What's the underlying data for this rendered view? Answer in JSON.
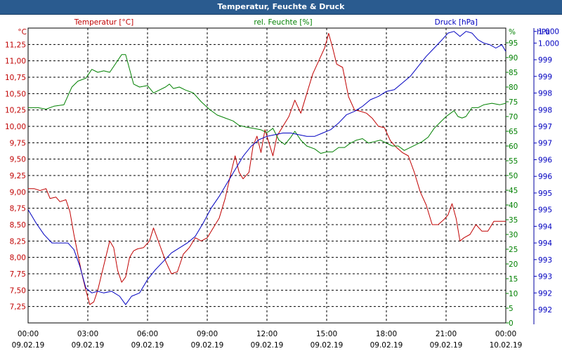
{
  "window": {
    "title": "Temperatur, Feuchte & Druck"
  },
  "chart_data": {
    "type": "line",
    "title": "Temperatur, Feuchte & Druck",
    "colors": {
      "temperature": "#c00000",
      "humidity": "#008000",
      "pressure": "#0000c0",
      "grid": "#000000",
      "title_bar": "#2a5b8f"
    },
    "x": {
      "label": "",
      "range_hours": [
        0,
        24
      ],
      "ticks": [
        {
          "hour": 0,
          "time": "00:00",
          "date": "09.02.19"
        },
        {
          "hour": 3,
          "time": "03:00",
          "date": "09.02.19"
        },
        {
          "hour": 6,
          "time": "06:00",
          "date": "09.02.19"
        },
        {
          "hour": 9,
          "time": "09:00",
          "date": "09.02.19"
        },
        {
          "hour": 12,
          "time": "12:00",
          "date": "09.02.19"
        },
        {
          "hour": 15,
          "time": "15:00",
          "date": "09.02.19"
        },
        {
          "hour": 18,
          "time": "18:00",
          "date": "09.02.19"
        },
        {
          "hour": 21,
          "time": "21:00",
          "date": "09.02.19"
        },
        {
          "hour": 24,
          "time": "00:00",
          "date": "10.02.19"
        }
      ]
    },
    "axes": {
      "temperature": {
        "unit_label": "°C",
        "series_label": "Temperatur [°C]",
        "ylim": [
          7.0,
          11.5
        ],
        "ticks": [
          7.25,
          7.5,
          7.75,
          8.0,
          8.25,
          8.5,
          8.75,
          9.0,
          9.25,
          9.5,
          9.75,
          10.0,
          10.25,
          10.5,
          10.75,
          11.0,
          11.25
        ],
        "tick_labels": [
          "7,25",
          "7,50",
          "7,75",
          "8,00",
          "8,25",
          "8,50",
          "8,75",
          "9,00",
          "9,25",
          "9,50",
          "9,75",
          "10,00",
          "10,25",
          "10,50",
          "10,75",
          "11,00",
          "11,25"
        ]
      },
      "humidity": {
        "unit_label": "%",
        "series_label": "rel. Feuchte [%]",
        "ylim": [
          0,
          100
        ],
        "ticks": [
          0,
          5,
          10,
          15,
          20,
          25,
          30,
          35,
          40,
          45,
          50,
          55,
          60,
          65,
          70,
          75,
          80,
          85,
          90,
          95
        ],
        "tick_labels": [
          "0",
          "5",
          "10",
          "15",
          "20",
          "25",
          "30",
          "35",
          "40",
          "45",
          "50",
          "55",
          "60",
          "65",
          "70",
          "75",
          "80",
          "85",
          "90",
          "95"
        ]
      },
      "pressure": {
        "unit_label": "hPa",
        "series_label": "Druck [hPa]",
        "ylim": [
          991.6,
          1000.45
        ],
        "ticks": [
          992,
          992.5,
          993,
          993.5,
          994,
          994.5,
          995,
          995.5,
          996,
          996.5,
          997,
          997.5,
          998,
          998.5,
          999,
          999.5,
          1000,
          1000.35
        ],
        "tick_labels": [
          "992",
          "992",
          "993",
          "993",
          "994",
          "994",
          "995",
          "995",
          "996",
          "996",
          "997",
          "997",
          "998",
          "998",
          "999",
          "999",
          "1.000",
          "1.000"
        ]
      }
    },
    "series": [
      {
        "name": "Temperatur [°C]",
        "axis": "temperature",
        "points": [
          [
            0,
            9.05
          ],
          [
            0.3,
            9.05
          ],
          [
            0.6,
            9.02
          ],
          [
            0.9,
            9.05
          ],
          [
            1.1,
            8.9
          ],
          [
            1.4,
            8.92
          ],
          [
            1.6,
            8.85
          ],
          [
            1.9,
            8.88
          ],
          [
            2.1,
            8.7
          ],
          [
            2.3,
            8.35
          ],
          [
            2.5,
            8.05
          ],
          [
            2.7,
            7.75
          ],
          [
            2.9,
            7.5
          ],
          [
            3.1,
            7.28
          ],
          [
            3.3,
            7.32
          ],
          [
            3.5,
            7.5
          ],
          [
            3.7,
            7.75
          ],
          [
            3.9,
            8.0
          ],
          [
            4.1,
            8.25
          ],
          [
            4.3,
            8.15
          ],
          [
            4.5,
            7.8
          ],
          [
            4.7,
            7.62
          ],
          [
            4.9,
            7.7
          ],
          [
            5.1,
            8.0
          ],
          [
            5.3,
            8.1
          ],
          [
            5.5,
            8.13
          ],
          [
            5.8,
            8.15
          ],
          [
            6.1,
            8.25
          ],
          [
            6.3,
            8.45
          ],
          [
            6.6,
            8.2
          ],
          [
            6.9,
            7.95
          ],
          [
            7.2,
            7.75
          ],
          [
            7.5,
            7.78
          ],
          [
            7.8,
            8.05
          ],
          [
            8.1,
            8.15
          ],
          [
            8.4,
            8.3
          ],
          [
            8.7,
            8.25
          ],
          [
            9.0,
            8.3
          ],
          [
            9.3,
            8.45
          ],
          [
            9.6,
            8.6
          ],
          [
            9.9,
            8.9
          ],
          [
            10.2,
            9.3
          ],
          [
            10.4,
            9.55
          ],
          [
            10.6,
            9.3
          ],
          [
            10.8,
            9.2
          ],
          [
            11.1,
            9.3
          ],
          [
            11.3,
            9.7
          ],
          [
            11.5,
            9.85
          ],
          [
            11.7,
            9.6
          ],
          [
            11.9,
            9.95
          ],
          [
            12.1,
            9.75
          ],
          [
            12.3,
            9.55
          ],
          [
            12.5,
            9.85
          ],
          [
            12.8,
            10.0
          ],
          [
            13.1,
            10.15
          ],
          [
            13.4,
            10.4
          ],
          [
            13.7,
            10.2
          ],
          [
            14.0,
            10.5
          ],
          [
            14.3,
            10.8
          ],
          [
            14.6,
            11.0
          ],
          [
            14.9,
            11.2
          ],
          [
            15.1,
            11.42
          ],
          [
            15.3,
            11.2
          ],
          [
            15.5,
            10.95
          ],
          [
            15.8,
            10.9
          ],
          [
            16.1,
            10.45
          ],
          [
            16.4,
            10.25
          ],
          [
            16.7,
            10.23
          ],
          [
            17.0,
            10.2
          ],
          [
            17.3,
            10.12
          ],
          [
            17.6,
            10.0
          ],
          [
            17.9,
            9.98
          ],
          [
            18.2,
            9.78
          ],
          [
            18.5,
            9.68
          ],
          [
            18.8,
            9.6
          ],
          [
            19.1,
            9.55
          ],
          [
            19.4,
            9.3
          ],
          [
            19.7,
            9.0
          ],
          [
            20.0,
            8.8
          ],
          [
            20.3,
            8.5
          ],
          [
            20.6,
            8.5
          ],
          [
            20.9,
            8.58
          ],
          [
            21.1,
            8.65
          ],
          [
            21.3,
            8.82
          ],
          [
            21.5,
            8.6
          ],
          [
            21.7,
            8.25
          ],
          [
            21.9,
            8.3
          ],
          [
            22.2,
            8.35
          ],
          [
            22.5,
            8.5
          ],
          [
            22.8,
            8.4
          ],
          [
            23.1,
            8.4
          ],
          [
            23.4,
            8.55
          ],
          [
            23.7,
            8.55
          ],
          [
            24.0,
            8.55
          ]
        ]
      },
      {
        "name": "rel. Feuchte [%]",
        "axis": "humidity",
        "points": [
          [
            0,
            73
          ],
          [
            0.5,
            73
          ],
          [
            0.9,
            72.5
          ],
          [
            1.3,
            73.5
          ],
          [
            1.8,
            74
          ],
          [
            2.2,
            80
          ],
          [
            2.5,
            82
          ],
          [
            2.9,
            83
          ],
          [
            3.2,
            86
          ],
          [
            3.5,
            85
          ],
          [
            3.8,
            85.5
          ],
          [
            4.1,
            85
          ],
          [
            4.4,
            88
          ],
          [
            4.7,
            91
          ],
          [
            4.9,
            91
          ],
          [
            5.1,
            86
          ],
          [
            5.3,
            81
          ],
          [
            5.6,
            80
          ],
          [
            6.0,
            80.5
          ],
          [
            6.3,
            78
          ],
          [
            6.6,
            79
          ],
          [
            6.9,
            80
          ],
          [
            7.1,
            81
          ],
          [
            7.3,
            79.5
          ],
          [
            7.6,
            80
          ],
          [
            7.9,
            79
          ],
          [
            8.3,
            78
          ],
          [
            8.7,
            75
          ],
          [
            9.1,
            72.5
          ],
          [
            9.5,
            70.5
          ],
          [
            9.9,
            69.5
          ],
          [
            10.3,
            68.5
          ],
          [
            10.6,
            67
          ],
          [
            10.9,
            66.5
          ],
          [
            11.3,
            66
          ],
          [
            11.7,
            65.5
          ],
          [
            12.0,
            64.5
          ],
          [
            12.3,
            66
          ],
          [
            12.6,
            62
          ],
          [
            12.9,
            60.5
          ],
          [
            13.2,
            63
          ],
          [
            13.4,
            65
          ],
          [
            13.7,
            62
          ],
          [
            14.0,
            60
          ],
          [
            14.4,
            59
          ],
          [
            14.7,
            57.5
          ],
          [
            15.0,
            58
          ],
          [
            15.3,
            58
          ],
          [
            15.6,
            59.5
          ],
          [
            15.9,
            59.5
          ],
          [
            16.2,
            61
          ],
          [
            16.5,
            62
          ],
          [
            16.8,
            62.5
          ],
          [
            17.1,
            61
          ],
          [
            17.4,
            61.5
          ],
          [
            17.7,
            62
          ],
          [
            18.0,
            61
          ],
          [
            18.3,
            60
          ],
          [
            18.6,
            60
          ],
          [
            18.9,
            58.5
          ],
          [
            19.2,
            59.5
          ],
          [
            19.5,
            60.5
          ],
          [
            19.8,
            61.5
          ],
          [
            20.1,
            63
          ],
          [
            20.4,
            66
          ],
          [
            20.7,
            68
          ],
          [
            21.0,
            70
          ],
          [
            21.2,
            71
          ],
          [
            21.4,
            72
          ],
          [
            21.6,
            70
          ],
          [
            21.8,
            69.5
          ],
          [
            22.0,
            70
          ],
          [
            22.3,
            73
          ],
          [
            22.6,
            73
          ],
          [
            22.9,
            74
          ],
          [
            23.3,
            74.5
          ],
          [
            23.7,
            74
          ],
          [
            24.0,
            74.5
          ]
        ]
      },
      {
        "name": "Druck [hPa]",
        "axis": "pressure",
        "points": [
          [
            0,
            995.0
          ],
          [
            0.4,
            994.6
          ],
          [
            0.8,
            994.25
          ],
          [
            1.2,
            994.0
          ],
          [
            1.6,
            994.0
          ],
          [
            2.0,
            994.0
          ],
          [
            2.3,
            993.8
          ],
          [
            2.6,
            993.3
          ],
          [
            2.9,
            992.65
          ],
          [
            3.2,
            992.5
          ],
          [
            3.5,
            992.55
          ],
          [
            3.8,
            992.5
          ],
          [
            4.2,
            992.55
          ],
          [
            4.6,
            992.4
          ],
          [
            4.9,
            992.15
          ],
          [
            5.2,
            992.4
          ],
          [
            5.6,
            992.5
          ],
          [
            6.0,
            992.9
          ],
          [
            6.4,
            993.2
          ],
          [
            6.8,
            993.45
          ],
          [
            7.2,
            993.7
          ],
          [
            7.6,
            993.85
          ],
          [
            8.0,
            994.0
          ],
          [
            8.4,
            994.2
          ],
          [
            8.8,
            994.6
          ],
          [
            9.2,
            995.05
          ],
          [
            9.6,
            995.4
          ],
          [
            10.0,
            995.8
          ],
          [
            10.4,
            996.2
          ],
          [
            10.8,
            996.6
          ],
          [
            11.2,
            996.9
          ],
          [
            11.6,
            997.1
          ],
          [
            12.0,
            997.2
          ],
          [
            12.4,
            997.25
          ],
          [
            12.8,
            997.3
          ],
          [
            13.2,
            997.3
          ],
          [
            13.6,
            997.25
          ],
          [
            14.0,
            997.2
          ],
          [
            14.4,
            997.2
          ],
          [
            14.8,
            997.3
          ],
          [
            15.2,
            997.4
          ],
          [
            15.6,
            997.6
          ],
          [
            16.0,
            997.85
          ],
          [
            16.4,
            997.95
          ],
          [
            16.8,
            998.1
          ],
          [
            17.2,
            998.3
          ],
          [
            17.6,
            998.4
          ],
          [
            18.0,
            998.55
          ],
          [
            18.4,
            998.6
          ],
          [
            18.8,
            998.8
          ],
          [
            19.2,
            999.0
          ],
          [
            19.6,
            999.3
          ],
          [
            20.0,
            999.6
          ],
          [
            20.4,
            999.85
          ],
          [
            20.8,
            1000.1
          ],
          [
            21.1,
            1000.3
          ],
          [
            21.4,
            1000.35
          ],
          [
            21.7,
            1000.2
          ],
          [
            22.0,
            1000.35
          ],
          [
            22.3,
            1000.3
          ],
          [
            22.6,
            1000.1
          ],
          [
            22.9,
            1000.0
          ],
          [
            23.2,
            999.95
          ],
          [
            23.5,
            999.85
          ],
          [
            23.8,
            999.95
          ],
          [
            24.0,
            999.75
          ]
        ]
      }
    ]
  }
}
